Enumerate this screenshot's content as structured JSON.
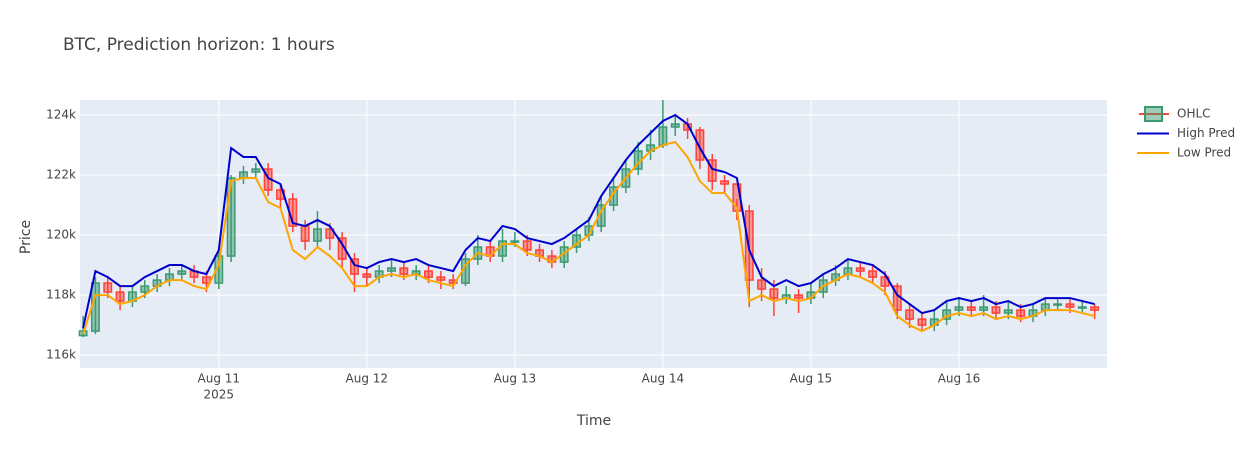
{
  "chart_data": {
    "type": "candlestick",
    "title": "BTC,  Prediction horizon: 1 hours",
    "x_label": "Time",
    "y_label": "Price",
    "x": [
      "2025-08-10T02:00",
      "2025-08-10T04:00",
      "2025-08-10T06:00",
      "2025-08-10T08:00",
      "2025-08-10T10:00",
      "2025-08-10T12:00",
      "2025-08-10T14:00",
      "2025-08-10T16:00",
      "2025-08-10T18:00",
      "2025-08-10T20:00",
      "2025-08-10T22:00",
      "2025-08-11T00:00",
      "2025-08-11T02:00",
      "2025-08-11T04:00",
      "2025-08-11T06:00",
      "2025-08-11T08:00",
      "2025-08-11T10:00",
      "2025-08-11T12:00",
      "2025-08-11T14:00",
      "2025-08-11T16:00",
      "2025-08-11T18:00",
      "2025-08-11T20:00",
      "2025-08-11T22:00",
      "2025-08-12T00:00",
      "2025-08-12T02:00",
      "2025-08-12T04:00",
      "2025-08-12T06:00",
      "2025-08-12T08:00",
      "2025-08-12T10:00",
      "2025-08-12T12:00",
      "2025-08-12T14:00",
      "2025-08-12T16:00",
      "2025-08-12T18:00",
      "2025-08-12T20:00",
      "2025-08-12T22:00",
      "2025-08-13T00:00",
      "2025-08-13T02:00",
      "2025-08-13T04:00",
      "2025-08-13T06:00",
      "2025-08-13T08:00",
      "2025-08-13T10:00",
      "2025-08-13T12:00",
      "2025-08-13T14:00",
      "2025-08-13T16:00",
      "2025-08-13T18:00",
      "2025-08-13T20:00",
      "2025-08-13T22:00",
      "2025-08-14T00:00",
      "2025-08-14T02:00",
      "2025-08-14T04:00",
      "2025-08-14T06:00",
      "2025-08-14T08:00",
      "2025-08-14T10:00",
      "2025-08-14T12:00",
      "2025-08-14T14:00",
      "2025-08-14T16:00",
      "2025-08-14T18:00",
      "2025-08-14T20:00",
      "2025-08-14T22:00",
      "2025-08-15T00:00",
      "2025-08-15T02:00",
      "2025-08-15T04:00",
      "2025-08-15T06:00",
      "2025-08-15T08:00",
      "2025-08-15T10:00",
      "2025-08-15T12:00",
      "2025-08-15T14:00",
      "2025-08-15T16:00",
      "2025-08-15T18:00",
      "2025-08-15T20:00",
      "2025-08-15T22:00",
      "2025-08-16T00:00",
      "2025-08-16T02:00",
      "2025-08-16T04:00",
      "2025-08-16T06:00",
      "2025-08-16T08:00",
      "2025-08-16T10:00",
      "2025-08-16T12:00",
      "2025-08-16T14:00",
      "2025-08-16T16:00",
      "2025-08-16T18:00",
      "2025-08-16T20:00",
      "2025-08-16T22:00"
    ],
    "ohlc": {
      "name": "OHLC",
      "increasing_color": "#3d9970",
      "decreasing_color": "#ff4136",
      "open": [
        116650,
        116800,
        118400,
        118100,
        117800,
        118100,
        118300,
        118500,
        118700,
        118800,
        118600,
        118400,
        119300,
        121900,
        122100,
        122200,
        121500,
        121200,
        120300,
        119800,
        120200,
        119900,
        119200,
        118700,
        118600,
        118800,
        118900,
        118700,
        118800,
        118600,
        118500,
        118400,
        119200,
        119600,
        119300,
        119800,
        119800,
        119500,
        119300,
        119100,
        119600,
        120000,
        120300,
        121000,
        121600,
        122200,
        122800,
        123000,
        123600,
        123700,
        123500,
        122500,
        121800,
        121700,
        120800,
        118500,
        118200,
        117900,
        118000,
        117900,
        118100,
        118500,
        118700,
        118900,
        118800,
        118600,
        118300,
        117500,
        117200,
        117000,
        117200,
        117500,
        117600,
        117500,
        117600,
        117400,
        117500,
        117300,
        117500,
        117700,
        117700,
        117600,
        117600
      ],
      "high": [
        117300,
        118600,
        118600,
        118300,
        118300,
        118500,
        118700,
        118900,
        119000,
        119000,
        118800,
        119600,
        122000,
        122300,
        122400,
        122400,
        121700,
        121400,
        120500,
        120800,
        120400,
        120100,
        119400,
        118900,
        119000,
        119200,
        119100,
        119000,
        119000,
        118800,
        118700,
        119400,
        120000,
        119800,
        120200,
        120100,
        120000,
        119700,
        119500,
        119800,
        120200,
        120600,
        121300,
        121900,
        122500,
        123100,
        123500,
        124500,
        124000,
        123900,
        123600,
        122700,
        122000,
        121200,
        121000,
        118900,
        118500,
        118300,
        118200,
        118400,
        118700,
        119000,
        119200,
        119100,
        119000,
        118800,
        118400,
        117700,
        117400,
        117500,
        117800,
        117900,
        117800,
        118000,
        117800,
        117800,
        117700,
        117700,
        117900,
        117900,
        117900,
        117800,
        117700
      ],
      "low": [
        116600,
        116700,
        117900,
        117500,
        117600,
        117900,
        118100,
        118300,
        118500,
        118400,
        118100,
        118200,
        119100,
        121700,
        121900,
        121300,
        120900,
        120100,
        119500,
        119600,
        119500,
        118900,
        118100,
        118300,
        118400,
        118600,
        118500,
        118500,
        118400,
        118200,
        118200,
        118300,
        119000,
        119100,
        119100,
        119600,
        119300,
        119100,
        118900,
        118900,
        119400,
        119800,
        120100,
        120800,
        121400,
        122000,
        122500,
        122900,
        123300,
        123200,
        122200,
        121500,
        121400,
        120500,
        117600,
        117800,
        117300,
        117700,
        117400,
        117700,
        117900,
        118300,
        118500,
        118600,
        118400,
        118000,
        117200,
        116900,
        116800,
        116800,
        117000,
        117300,
        117300,
        117300,
        117200,
        117200,
        117100,
        117100,
        117300,
        117500,
        117400,
        117400,
        117200
      ],
      "close": [
        116800,
        118400,
        118100,
        117800,
        118100,
        118300,
        118500,
        118700,
        118800,
        118600,
        118400,
        119300,
        121900,
        122100,
        122200,
        121500,
        121200,
        120300,
        119800,
        120200,
        119900,
        119200,
        118700,
        118600,
        118800,
        118900,
        118700,
        118800,
        118600,
        118500,
        118400,
        119200,
        119600,
        119300,
        119800,
        119800,
        119500,
        119300,
        119100,
        119600,
        120000,
        120300,
        121000,
        121600,
        122200,
        122800,
        123000,
        123600,
        123700,
        123500,
        122500,
        121800,
        121700,
        120800,
        118500,
        118200,
        117900,
        118000,
        117900,
        118100,
        118500,
        118700,
        118900,
        118800,
        118600,
        118300,
        117500,
        117200,
        117000,
        117200,
        117500,
        117600,
        117500,
        117600,
        117400,
        117500,
        117300,
        117500,
        117700,
        117700,
        117600,
        117600,
        117500
      ]
    },
    "series": [
      {
        "name": "High Pred",
        "color": "#0000cd",
        "values": [
          116900,
          118800,
          118600,
          118300,
          118300,
          118600,
          118800,
          119000,
          119000,
          118800,
          118700,
          119500,
          122900,
          122600,
          122600,
          121900,
          121700,
          120400,
          120300,
          120500,
          120300,
          119700,
          119000,
          118900,
          119100,
          119200,
          119100,
          119200,
          119000,
          118900,
          118800,
          119500,
          119900,
          119800,
          120300,
          120200,
          119900,
          119800,
          119700,
          119900,
          120200,
          120500,
          121300,
          121900,
          122500,
          123000,
          123400,
          123800,
          124000,
          123700,
          122900,
          122200,
          122100,
          121900,
          119500,
          118600,
          118300,
          118500,
          118300,
          118400,
          118700,
          118900,
          119200,
          119100,
          119000,
          118700,
          118000,
          117700,
          117400,
          117500,
          117800,
          117900,
          117800,
          117900,
          117700,
          117800,
          117600,
          117700,
          117900,
          117900,
          117900,
          117800,
          117700
        ]
      },
      {
        "name": "Low Pred",
        "color": "#ffa500",
        "values": [
          116700,
          118000,
          118000,
          117700,
          117800,
          118000,
          118300,
          118500,
          118500,
          118300,
          118200,
          119000,
          121800,
          121900,
          121900,
          121100,
          120900,
          119500,
          119200,
          119600,
          119300,
          118900,
          118300,
          118300,
          118600,
          118700,
          118600,
          118700,
          118500,
          118400,
          118300,
          119000,
          119400,
          119300,
          119700,
          119700,
          119400,
          119300,
          119100,
          119400,
          119700,
          120000,
          120800,
          121400,
          121900,
          122400,
          122800,
          123000,
          123100,
          122600,
          121800,
          121400,
          121400,
          120900,
          117800,
          118000,
          117800,
          117900,
          117800,
          117900,
          118300,
          118500,
          118700,
          118600,
          118400,
          118100,
          117300,
          117000,
          116800,
          117000,
          117300,
          117400,
          117300,
          117400,
          117200,
          117300,
          117200,
          117300,
          117500,
          117500,
          117500,
          117400,
          117300
        ]
      }
    ],
    "xlim": [
      "2025-08-10T01:30",
      "2025-08-17T00:00"
    ],
    "xticks": [
      {
        "value": "2025-08-11T00:00",
        "label": "Aug 11"
      },
      {
        "value": "2025-08-12T00:00",
        "label": "Aug 12"
      },
      {
        "value": "2025-08-13T00:00",
        "label": "Aug 13"
      },
      {
        "value": "2025-08-14T00:00",
        "label": "Aug 14"
      },
      {
        "value": "2025-08-15T00:00",
        "label": "Aug 15"
      },
      {
        "value": "2025-08-16T00:00",
        "label": "Aug 16"
      }
    ],
    "x_year_label": "2025",
    "ylim": [
      115570,
      124500
    ],
    "yticks": [
      {
        "value": 116000,
        "label": "116k"
      },
      {
        "value": 118000,
        "label": "118k"
      },
      {
        "value": 120000,
        "label": "120k"
      },
      {
        "value": 122000,
        "label": "122k"
      },
      {
        "value": 124000,
        "label": "124k"
      }
    ],
    "grid": true,
    "legend": "right"
  }
}
